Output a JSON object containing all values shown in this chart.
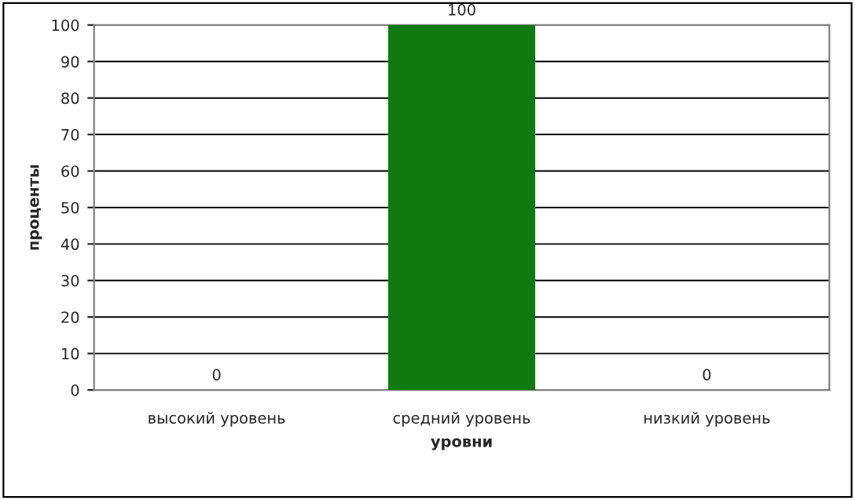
{
  "chart_data": {
    "type": "bar",
    "xlabel": "уровни",
    "ylabel": "проценты",
    "categories": [
      "высокий уровень",
      "средний уровень",
      "низкий уровень"
    ],
    "values": [
      0,
      100,
      0
    ],
    "color": "#107a10",
    "ylim": [
      0,
      100
    ],
    "yticks": [
      0,
      10,
      20,
      30,
      40,
      50,
      60,
      70,
      80,
      90,
      100
    ],
    "grid": "y",
    "data_labels": true
  }
}
